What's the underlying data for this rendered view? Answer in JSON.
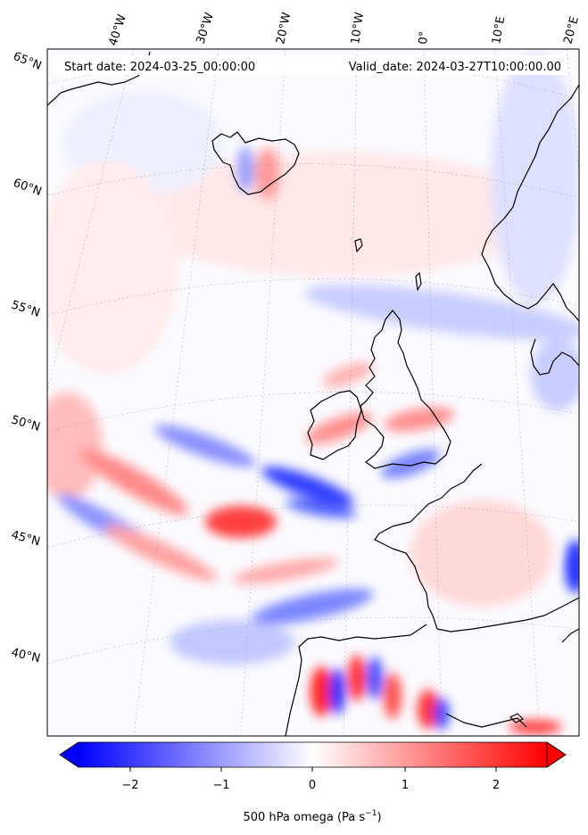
{
  "header": {
    "start_date": "Start date: 2024-03-25_00:00:00",
    "valid_date": "Valid_date: 2024-03-27T10:00:00.00"
  },
  "lon_labels": [
    "40°W",
    "30°W",
    "20°W",
    "10°W",
    "0°",
    "10°E",
    "20°E"
  ],
  "lat_labels": [
    "65°N",
    "60°N",
    "55°N",
    "50°N",
    "45°N",
    "40°N"
  ],
  "colorbar": {
    "ticks": [
      "−2",
      "−1",
      "0",
      "1",
      "2"
    ],
    "label": "500 hPa omega (Pa s",
    "label_exp": "−1",
    "label_close": ")",
    "colors": {
      "negative": "#0000ff",
      "zero": "#ffffff",
      "positive": "#ff0000"
    }
  },
  "map": {
    "colormap": "bwr",
    "projection": "lambert-conformal",
    "field": "500 hPa omega",
    "lat_range": [
      37,
      66
    ],
    "lon_range": [
      -45,
      22
    ],
    "coastlines": true,
    "gridlines": "dotted"
  }
}
